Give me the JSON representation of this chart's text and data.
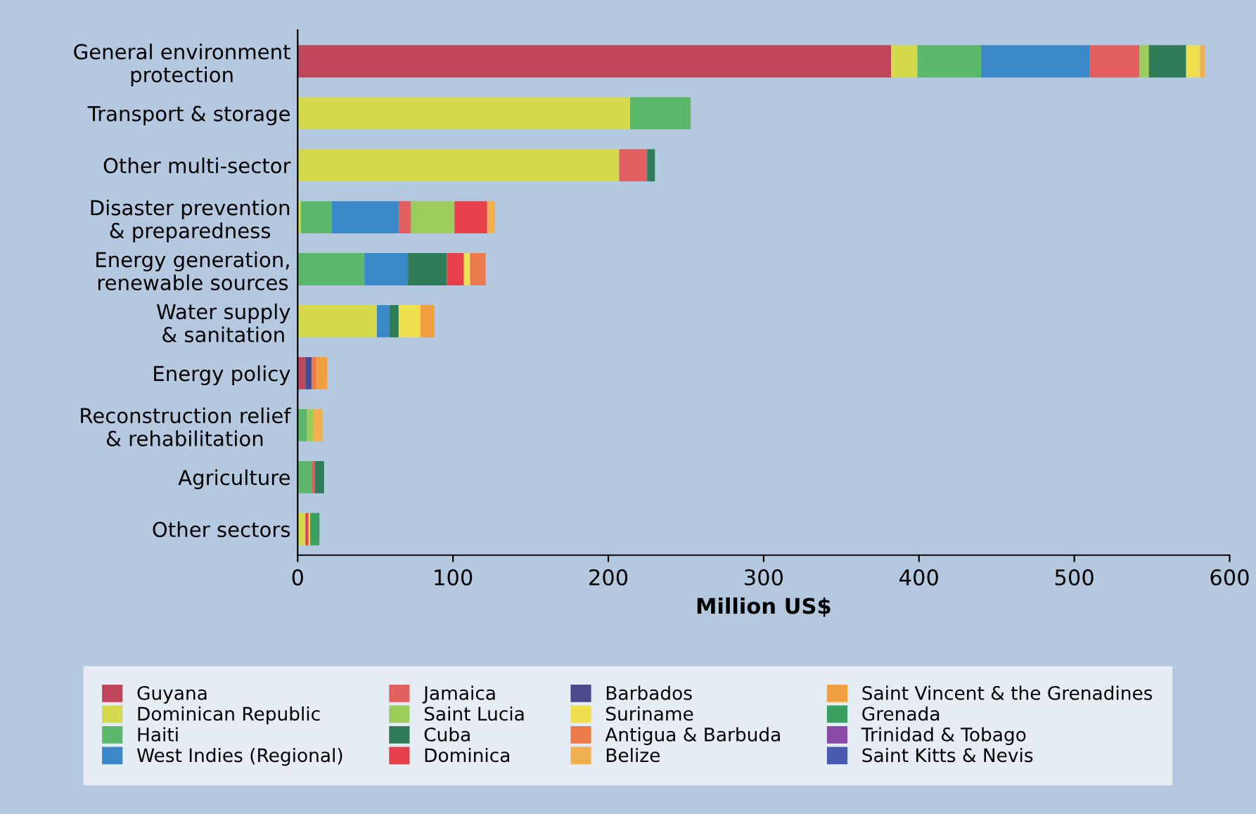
{
  "chart_data": {
    "type": "bar",
    "orientation": "horizontal",
    "stacked": true,
    "xlabel": "Million US$",
    "categories": [
      "General environment\nprotection",
      "Transport & storage",
      "Other multi-sector",
      "Disaster prevention\n& preparedness",
      "Energy generation,\nrenewable sources",
      "Water supply\n& sanitation",
      "Energy policy",
      "Reconstruction relief\n& rehabilitation",
      "Agriculture",
      "Other sectors"
    ],
    "xlim": [
      0,
      600
    ],
    "xticks": [
      0,
      100,
      200,
      300,
      400,
      500,
      600
    ],
    "grid": false,
    "legend": "bottom",
    "series": [
      {
        "name": "Guyana",
        "color": "#c0465a",
        "values": [
          382,
          null,
          null,
          null,
          null,
          null,
          5,
          null,
          null,
          null
        ]
      },
      {
        "name": "Dominican Republic",
        "color": "#d4d94e",
        "values": [
          17,
          214,
          207,
          2,
          null,
          51,
          null,
          null,
          null,
          5
        ]
      },
      {
        "name": "Haiti",
        "color": "#5cb86a",
        "values": [
          41,
          39,
          null,
          20,
          43,
          null,
          null,
          6,
          9,
          null
        ]
      },
      {
        "name": "West Indies (Regional)",
        "color": "#3a88c8",
        "values": [
          70,
          null,
          null,
          43,
          28,
          8,
          null,
          null,
          null,
          null
        ]
      },
      {
        "name": "Jamaica",
        "color": "#e46060",
        "values": [
          32,
          null,
          18,
          8,
          null,
          null,
          null,
          null,
          2,
          null
        ]
      },
      {
        "name": "Saint Lucia",
        "color": "#9ccc5a",
        "values": [
          6,
          null,
          null,
          28,
          null,
          null,
          null,
          4,
          null,
          null
        ]
      },
      {
        "name": "Cuba",
        "color": "#2e7d58",
        "values": [
          24,
          null,
          5,
          null,
          25,
          6,
          null,
          null,
          6,
          null
        ]
      },
      {
        "name": "Dominica",
        "color": "#e8404a",
        "values": [
          null,
          null,
          null,
          21,
          11,
          null,
          null,
          null,
          null,
          2
        ]
      },
      {
        "name": "Barbados",
        "color": "#4a4a8c",
        "values": [
          null,
          null,
          null,
          null,
          null,
          null,
          4,
          null,
          null,
          null
        ]
      },
      {
        "name": "Suriname",
        "color": "#f0e050",
        "values": [
          9,
          null,
          null,
          null,
          4,
          14,
          null,
          null,
          null,
          1
        ]
      },
      {
        "name": "Antigua & Barbuda",
        "color": "#ec7a4a",
        "values": [
          null,
          null,
          null,
          null,
          10,
          null,
          3,
          null,
          null,
          null
        ]
      },
      {
        "name": "Belize",
        "color": "#f0b050",
        "values": [
          3,
          null,
          null,
          5,
          null,
          null,
          null,
          6,
          null,
          null
        ]
      },
      {
        "name": "Saint Vincent & the Grenadines",
        "color": "#f0a040",
        "values": [
          null,
          null,
          null,
          null,
          null,
          9,
          7,
          null,
          null,
          null
        ]
      },
      {
        "name": "Grenada",
        "color": "#3aa060",
        "values": [
          null,
          null,
          null,
          null,
          null,
          null,
          null,
          null,
          null,
          6
        ]
      },
      {
        "name": "Trinidad & Tobago",
        "color": "#8a4aa8",
        "values": [
          null,
          null,
          null,
          null,
          null,
          null,
          null,
          null,
          null,
          null
        ]
      },
      {
        "name": "Saint Kitts & Nevis",
        "color": "#4a5ab0",
        "values": [
          null,
          null,
          null,
          null,
          null,
          null,
          null,
          null,
          null,
          null
        ]
      }
    ]
  }
}
